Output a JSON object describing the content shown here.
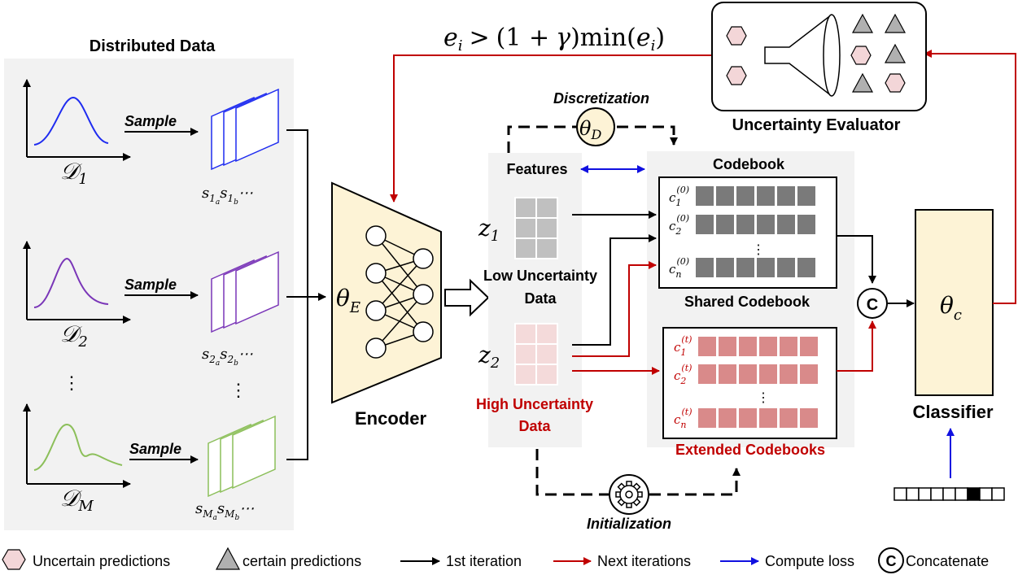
{
  "distributed": {
    "title": "Distributed Data",
    "sample_label": "Sample",
    "domains": [
      {
        "name": "𝒟",
        "sub": "1",
        "color": "#1f2cf0",
        "s": "s",
        "sa": "1",
        "sa2": "a",
        "sb": "1",
        "sb2": "b",
        "dots": "⋯"
      },
      {
        "name": "𝒟",
        "sub": "2",
        "color": "#7a36b8",
        "s": "s",
        "sa": "2",
        "sa2": "a",
        "sb": "2",
        "sb2": "b",
        "dots": "⋯"
      },
      {
        "name": "𝒟",
        "sub": "M",
        "color": "#8cbf5a",
        "s": "s",
        "sa": "M",
        "sa2": "a",
        "sb": "M",
        "sb2": "b",
        "dots": "⋯"
      }
    ],
    "vdots": "⋮"
  },
  "encoder": {
    "label": "Encoder",
    "theta": "θ",
    "sub": "E"
  },
  "features": {
    "title": "Features",
    "z1": "z",
    "z1_sub": "1",
    "z2": "z",
    "z2_sub": "2",
    "low_line1": "Low Uncertainty",
    "low_line2": "Data",
    "high_line1": "High Uncertainty",
    "high_line2": "Data"
  },
  "discretization": {
    "label": "Discretization",
    "theta": "θ",
    "sub": "D"
  },
  "initialization": {
    "label": "Initialization"
  },
  "codebook": {
    "title": "Codebook",
    "shared_label": "Shared Codebook",
    "extended_label": "Extended Codebooks",
    "shared_rows": [
      {
        "c": "c",
        "sub": "1",
        "sup": "(0)"
      },
      {
        "c": "c",
        "sub": "2",
        "sup": "(0)"
      },
      {
        "c": "c",
        "sub": "n",
        "sup": "(0)"
      }
    ],
    "extended_rows": [
      {
        "c": "c",
        "sub": "1",
        "sup": "(t)"
      },
      {
        "c": "c",
        "sub": "2",
        "sup": "(t)"
      },
      {
        "c": "c",
        "sub": "n",
        "sup": "(t)"
      }
    ],
    "vdots": "⋮"
  },
  "classifier": {
    "label": "Classifier",
    "theta": "θ",
    "sub": "c"
  },
  "concat_symbol": "C",
  "evaluator": {
    "label": "Uncertainty Evaluator"
  },
  "formula": {
    "e": "e",
    "i": "i",
    "gt": ">",
    "paren_open": "(1 +",
    "gamma": "γ",
    "paren_close": ")min(",
    "e2": "e",
    "i2": "i",
    "close": ")"
  },
  "legend": [
    {
      "label": "Uncertain predictions"
    },
    {
      "label": "certain predictions"
    },
    {
      "label": "1st iteration"
    },
    {
      "label": "Next iterations"
    },
    {
      "label": "Compute loss"
    },
    {
      "label": "Concatenate"
    }
  ],
  "colors": {
    "black": "#000000",
    "red": "#c00000",
    "blue": "#1010e0",
    "panel": "#f2f2f2",
    "encoder_fill": "#fdf3d6",
    "shared_cell": "#7a7a7a",
    "extended_cell": "#d98a8a",
    "z1_cell": "#c0c0c0",
    "z2_cell": "#f4dada",
    "hexagon": "#f3d6d8",
    "triangle": "#b0b0b0"
  }
}
